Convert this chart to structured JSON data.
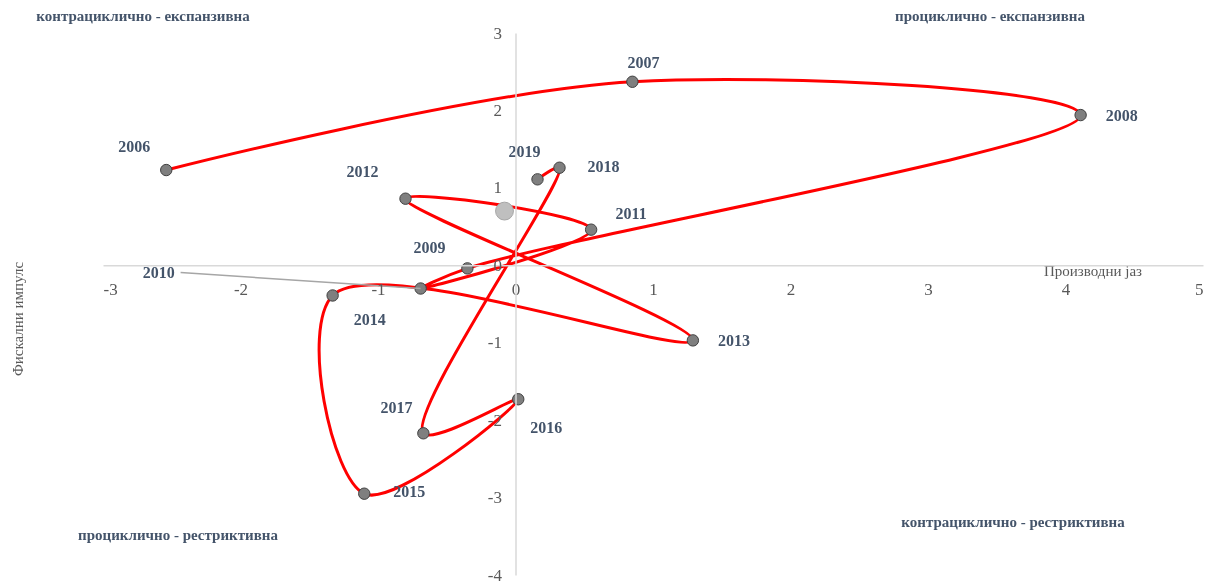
{
  "chart_data": {
    "type": "line",
    "xlabel": "Производни јаз",
    "xlim": [
      -3,
      5
    ],
    "xticks": [
      -3,
      -2,
      -1,
      0,
      1,
      2,
      3,
      4,
      5
    ],
    "ylim": [
      -4,
      3
    ],
    "yticks": [
      -4,
      -3,
      -2,
      -1,
      0,
      1,
      2,
      3
    ],
    "grid": false,
    "marker": "circle",
    "line_style": "solid",
    "series": [
      {
        "color": "#ff0000",
        "x": [
          -2.54,
          0.85,
          4.11,
          -0.35,
          -0.69,
          0.55,
          -0.8,
          1.29,
          -1.33,
          -1.1,
          0.02,
          -0.67,
          0.32,
          0.16
        ],
        "values": [
          1.23,
          2.37,
          1.94,
          -0.04,
          -0.3,
          0.46,
          0.86,
          -0.97,
          -0.39,
          -2.95,
          -1.73,
          -2.17,
          1.26,
          1.11
        ]
      },
      {
        "type": "scatter",
        "color": "#bfbfbf",
        "x": [
          -0.08
        ],
        "values": [
          0.7
        ]
      }
    ],
    "annotations": [
      {
        "text": "2006",
        "x": -2.54,
        "y": 1.23
      },
      {
        "text": "2007",
        "x": 0.85,
        "y": 2.37
      },
      {
        "text": "2008",
        "x": 4.11,
        "y": 1.94
      },
      {
        "text": "2009",
        "x": -0.35,
        "y": -0.04
      },
      {
        "text": "2010",
        "x": -0.69,
        "y": -0.3
      },
      {
        "text": "2011",
        "x": 0.55,
        "y": 0.46
      },
      {
        "text": "2012",
        "x": -0.8,
        "y": 0.86
      },
      {
        "text": "2013",
        "x": 1.29,
        "y": -0.97
      },
      {
        "text": "2014",
        "x": -1.33,
        "y": -0.39
      },
      {
        "text": "2015",
        "x": -1.1,
        "y": -2.95
      },
      {
        "text": "2016",
        "x": 0.02,
        "y": -1.73
      },
      {
        "text": "2017",
        "x": -0.67,
        "y": -2.17
      },
      {
        "text": "2018",
        "x": 0.32,
        "y": 1.26
      },
      {
        "text": "2019",
        "x": 0.16,
        "y": 1.11
      },
      "контрациклично - експанзивна",
      "проциклично - експанзивна",
      "проциклично - рестриктивна",
      "контрациклично - рестриктивна",
      "Фискални импулс"
    ]
  }
}
